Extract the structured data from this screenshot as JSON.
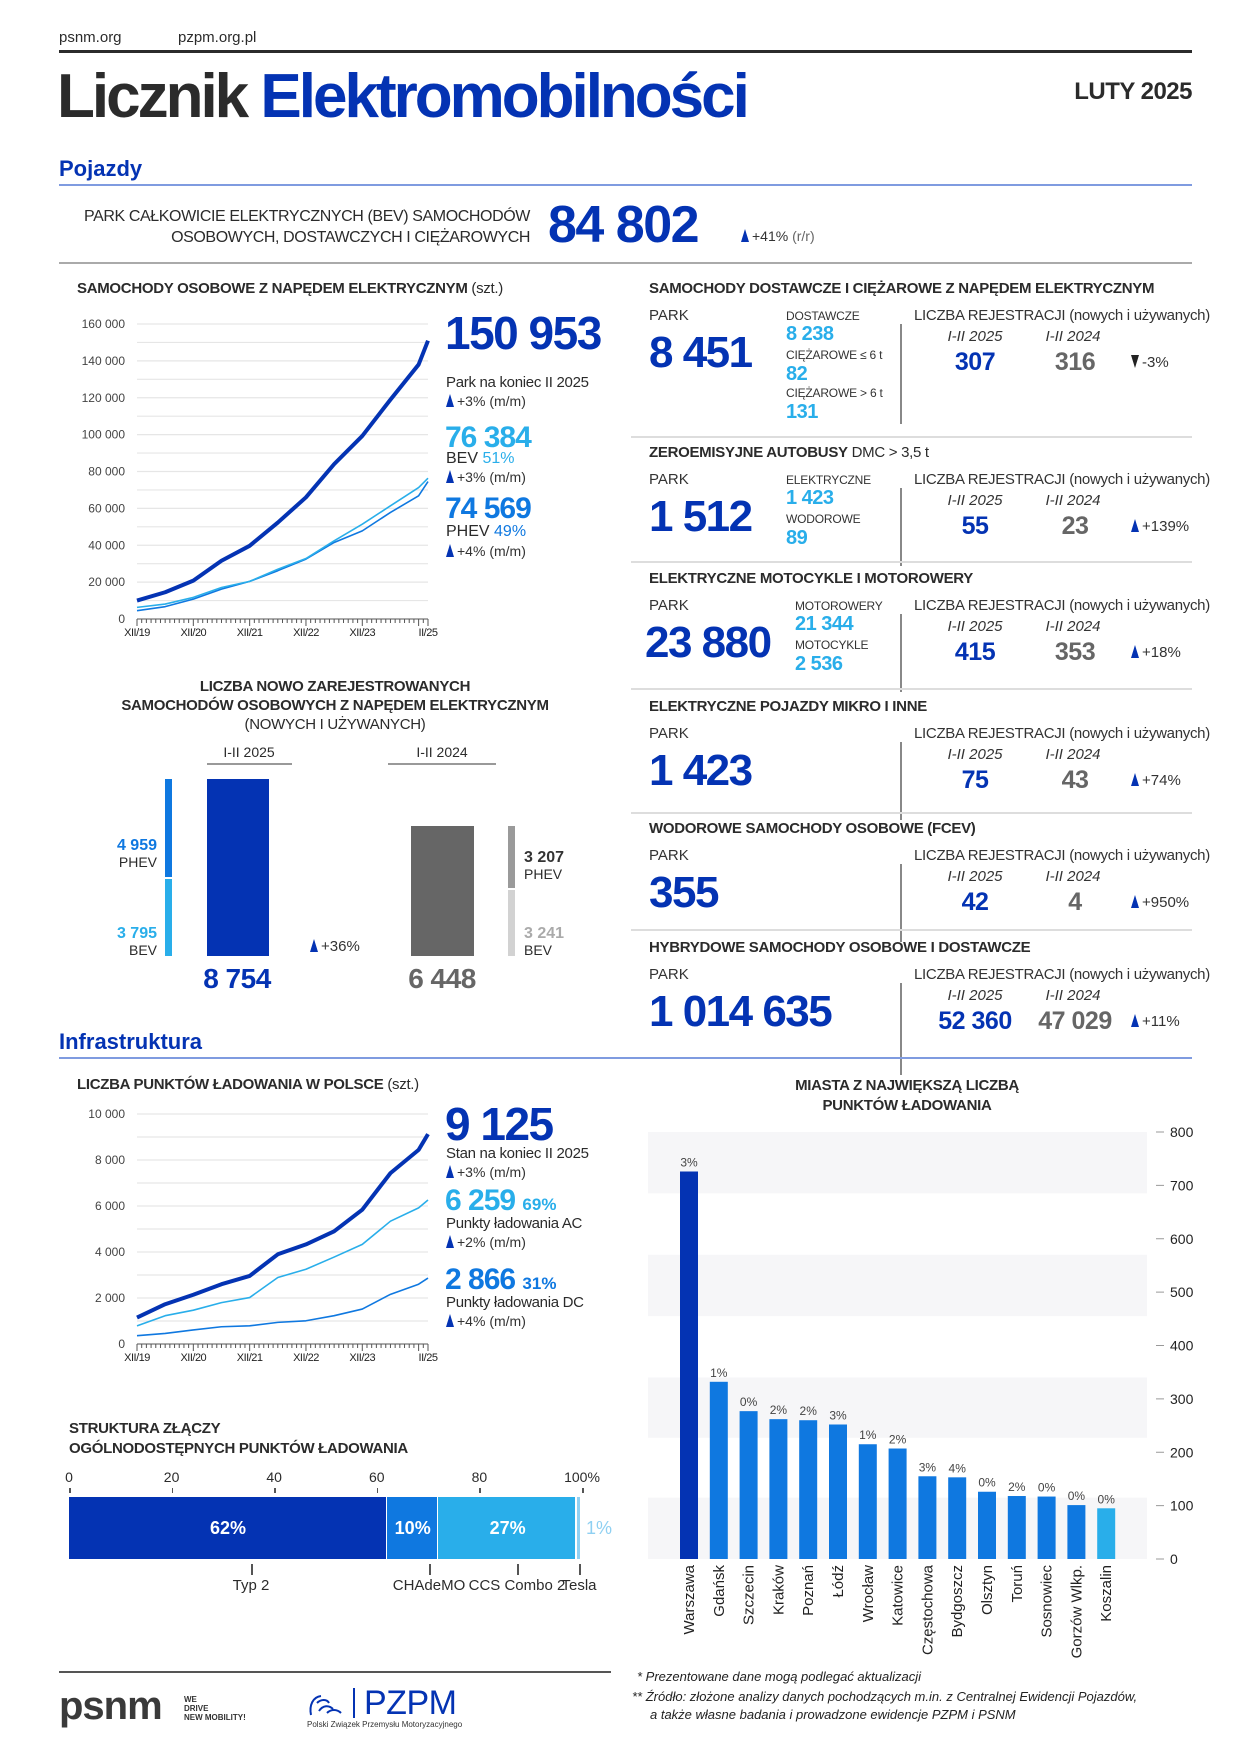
{
  "header": {
    "links": [
      "psnm.org",
      "pzpm.org.pl"
    ],
    "title_dark": "Licznik",
    "title_blue": "Elektromobilności",
    "date": "LUTY 2025"
  },
  "sections": {
    "vehicles": "Pojazdy",
    "infrastructure": "Infrastruktura"
  },
  "bev_fleet": {
    "label_line1": "PARK CAŁKOWICIE ELEKTRYCZNYCH (BEV) SAMOCHODÓW",
    "label_line2": "OSOBOWYCH, DOSTAWCZYCH I CIĘŻAROWYCH",
    "value": "84 802",
    "change": "+41%",
    "change_unit": "(r/r)"
  },
  "colors": {
    "dark_blue": "#0433b3",
    "mid_blue": "#0f78e0",
    "light_blue": "#29aeea",
    "grey": "#666666",
    "light_grey": "#d2d2d2",
    "mid_grey": "#9a9a9a"
  },
  "cars": {
    "title": "SAMOCHODY OSOBOWE Z NAPĘDEM ELEKTRYCZNYM",
    "unit": "(szt.)",
    "total": "150 953",
    "total_label": "Park na koniec II 2025",
    "total_change": "+3%",
    "mm": "(m/m)",
    "bev": "76 384",
    "bev_label": "BEV",
    "bev_share": "51%",
    "bev_change": "+3%",
    "phev": "74 569",
    "phev_label": "PHEV",
    "phev_share": "49%",
    "phev_change": "+4%"
  },
  "registrations": {
    "title_line1": "LICZBA NOWO ZAREJESTROWANYCH",
    "title_line2": "SAMOCHODÓW OSOBOWYCH Z NAPĘDEM ELEKTRYCZNYM",
    "title_line3": "(NOWYCH I UŻYWANYCH)",
    "period_current": "I-II 2025",
    "period_prev": "I-II 2024",
    "current_total": "8 754",
    "prev_total": "6 448",
    "change": "+36%",
    "current_phev": "4 959",
    "current_bev": "3 795",
    "prev_phev": "3 207",
    "prev_bev": "3 241",
    "phev_label": "PHEV",
    "bev_label": "BEV"
  },
  "common": {
    "park": "PARK",
    "reg_label": "LICZBA REJESTRACJI",
    "reg_paren": "(nowych i używanych)",
    "year_current": "I-II 2025",
    "year_prev": "I-II 2024"
  },
  "panels": [
    {
      "title": "SAMOCHODY DOSTAWCZE I CIĘŻAROWE Z NAPĘDEM ELEKTRYCZNYM",
      "title_suffix": "",
      "park": "8 451",
      "sub": [
        {
          "label": "DOSTAWCZE",
          "value": "8 238"
        },
        {
          "label": "CIĘŻAROWE ≤ 6 t",
          "value": "82"
        },
        {
          "label": "CIĘŻAROWE > 6 t",
          "value": "131"
        }
      ],
      "reg_current": "307",
      "reg_prev": "316",
      "change": "-3%",
      "direction": "down"
    },
    {
      "title": "ZEROEMISYJNE AUTOBUSY",
      "title_suffix": " DMC > 3,5 t",
      "park": "1 512",
      "sub": [
        {
          "label": "ELEKTRYCZNE",
          "value": "1 423"
        },
        {
          "label": "WODOROWE",
          "value": "89"
        }
      ],
      "reg_current": "55",
      "reg_prev": "23",
      "change": "+139%",
      "direction": "up"
    },
    {
      "title": "ELEKTRYCZNE MOTOCYKLE I MOTOROWERY",
      "title_suffix": "",
      "park": "23 880",
      "sub": [
        {
          "label": "MOTOROWERY",
          "value": "21 344"
        },
        {
          "label": "MOTOCYKLE",
          "value": "2 536"
        }
      ],
      "reg_current": "415",
      "reg_prev": "353",
      "change": "+18%",
      "direction": "up"
    },
    {
      "title": "ELEKTRYCZNE POJAZDY MIKRO I INNE",
      "title_suffix": "",
      "park": "1 423",
      "sub": [],
      "reg_current": "75",
      "reg_prev": "43",
      "change": "+74%",
      "direction": "up"
    },
    {
      "title": "WODOROWE SAMOCHODY OSOBOWE (FCEV)",
      "title_suffix": "",
      "park": "355",
      "sub": [],
      "reg_current": "42",
      "reg_prev": "4",
      "change": "+950%",
      "direction": "up"
    },
    {
      "title": "HYBRYDOWE SAMOCHODY OSOBOWE I DOSTAWCZE",
      "title_suffix": "",
      "park": "1 014 635",
      "sub": [],
      "reg_current": "52 360",
      "reg_prev": "47 029",
      "change": "+11%",
      "direction": "up"
    }
  ],
  "charging": {
    "title": "LICZBA PUNKTÓW ŁADOWANIA W POLSCE",
    "unit": "(szt.)",
    "total": "9 125",
    "total_label": "Stan na koniec II 2025",
    "total_change": "+3%",
    "mm": "(m/m)",
    "ac": "6 259",
    "ac_share": "69%",
    "ac_label": "Punkty ładowania AC",
    "ac_change": "+2%",
    "dc": "2 866",
    "dc_share": "31%",
    "dc_label": "Punkty ładowania DC",
    "dc_change": "+4%"
  },
  "connectors": {
    "title_line1": "STRUKTURA ZŁĄCZY",
    "title_line2": "OGÓLNODOSTĘPNYCH PUNKTÓW ŁADOWANIA"
  },
  "cities": {
    "title_line1": "MIASTA Z NAJWIĘKSZĄ LICZBĄ",
    "title_line2": "PUNKTÓW ŁADOWANIA"
  },
  "footnotes": [
    "* Prezentowane dane mogą podlegać aktualizacji",
    "** Źródło: złożone analizy danych pochodzących m.in. z Centralnej Ewidencji Pojazdów,",
    "a także własne badania i prowadzone ewidencje PZPM i PSNM"
  ],
  "logos": {
    "psnm": "psnm",
    "psnm_tagline": [
      "WE",
      "DRIVE",
      "NEW MOBILITY!"
    ],
    "pzpm": "PZPM",
    "pzpm_full": "Polski Związek Przemysłu Motoryzacyjnego"
  },
  "chart_data": [
    {
      "type": "line",
      "title": "SAMOCHODY OSOBOWE Z NAPĘDEM ELEKTRYCZNYM (szt.)",
      "x": [
        "XII/19",
        "VI/20",
        "XII/20",
        "VI/21",
        "XII/21",
        "VI/22",
        "XII/22",
        "VI/23",
        "XII/23",
        "VI/24",
        "XII/24",
        "II/25"
      ],
      "x_index": [
        0,
        6,
        12,
        18,
        24,
        30,
        36,
        42,
        48,
        54,
        60,
        62
      ],
      "x_tick_labels": [
        "XII/19",
        "XII/20",
        "XII/21",
        "XII/22",
        "XII/23",
        "II/25"
      ],
      "y_ticks": [
        "0",
        "20 000",
        "40 000",
        "60 000",
        "80 000",
        "100 000",
        "120 000",
        "140 000",
        "160 000"
      ],
      "ylim": [
        0,
        160000
      ],
      "grid": true,
      "series": [
        {
          "name": "Razem",
          "color": "#0433b3",
          "values": [
            10000,
            14500,
            20800,
            31600,
            39700,
            52300,
            66000,
            84000,
            99300,
            119000,
            138000,
            150953
          ]
        },
        {
          "name": "BEV",
          "color": "#29aeea",
          "values": [
            6300,
            8100,
            11700,
            17100,
            20400,
            27000,
            32800,
            42400,
            51400,
            61400,
            71300,
            76384
          ]
        },
        {
          "name": "PHEV",
          "color": "#0f78e0",
          "values": [
            4500,
            6700,
            10800,
            16200,
            20400,
            26200,
            32500,
            41500,
            47800,
            57800,
            66800,
            74569
          ]
        }
      ]
    },
    {
      "type": "bar",
      "title": "LICZBA NOWO ZAREJESTROWANYCH SAMOCHODÓW OSOBOWYCH Z NAPĘDEM ELEKTRYCZNYM (NOWYCH I UŻYWANYCH)",
      "categories": [
        "I-II 2025",
        "I-II 2024"
      ],
      "values": [
        8754,
        6448
      ],
      "series": [
        {
          "name": "BEV",
          "values": [
            3795,
            3241
          ]
        },
        {
          "name": "PHEV",
          "values": [
            4959,
            3207
          ]
        }
      ],
      "change": "+36%"
    },
    {
      "type": "line",
      "title": "LICZBA PUNKTÓW ŁADOWANIA W POLSCE (szt.)",
      "x": [
        "XII/19",
        "VI/20",
        "XII/20",
        "VI/21",
        "XII/21",
        "VI/22",
        "XII/22",
        "VI/23",
        "XII/23",
        "VI/24",
        "XII/24",
        "II/25"
      ],
      "x_index": [
        0,
        6,
        12,
        18,
        24,
        30,
        36,
        42,
        48,
        54,
        60,
        62
      ],
      "x_tick_labels": [
        "XII/19",
        "XII/20",
        "XII/21",
        "XII/22",
        "XII/23",
        "II/25"
      ],
      "y_ticks": [
        "0",
        "2 000",
        "4 000",
        "6 000",
        "8 000",
        "10 000"
      ],
      "ylim": [
        0,
        10000
      ],
      "grid": true,
      "series": [
        {
          "name": "Razem",
          "color": "#0433b3",
          "values": [
            1150,
            1730,
            2140,
            2600,
            2960,
            3900,
            4330,
            4900,
            5840,
            7430,
            8440,
            9125
          ]
        },
        {
          "name": "AC",
          "color": "#29aeea",
          "values": [
            790,
            1230,
            1470,
            1800,
            2020,
            2890,
            3250,
            3780,
            4330,
            5340,
            5920,
            6259
          ]
        },
        {
          "name": "DC",
          "color": "#0f78e0",
          "values": [
            360,
            460,
            610,
            750,
            790,
            940,
            1010,
            1230,
            1520,
            2160,
            2600,
            2866
          ]
        }
      ]
    },
    {
      "type": "bar",
      "orientation": "horizontal-stacked",
      "title": "STRUKTURA ZŁĄCZY OGÓLNODOSTĘPNYCH PUNKTÓW ŁADOWANIA",
      "categories": [
        "Typ 2",
        "CHAdeMO",
        "CCS Combo 2",
        "Tesla"
      ],
      "values": [
        62,
        10,
        27,
        1
      ],
      "labels": [
        "62%",
        "10%",
        "27%",
        "1%"
      ],
      "colors": [
        "#0433b3",
        "#0f78e0",
        "#29aeea",
        "#8fd0f2"
      ],
      "x_ticks": [
        "0",
        "20",
        "40",
        "60",
        "80",
        "100%"
      ],
      "xlim": [
        0,
        100
      ]
    },
    {
      "type": "bar",
      "title": "MIASTA Z NAJWIĘKSZĄ LICZBĄ PUNKTÓW ŁADOWANIA",
      "categories": [
        "Warszawa",
        "Gdańsk",
        "Szczecin",
        "Kraków",
        "Poznań",
        "Łódź",
        "Wrocław",
        "Katowice",
        "Częstochowa",
        "Bydgoszcz",
        "Olsztyn",
        "Toruń",
        "Sosnowiec",
        "Gorzów Wlkp.",
        "Koszalin"
      ],
      "values": [
        726,
        332,
        277,
        262,
        260,
        252,
        215,
        207,
        155,
        153,
        126,
        118,
        117,
        101,
        95
      ],
      "labels": [
        "3%",
        "1%",
        "0%",
        "2%",
        "2%",
        "3%",
        "1%",
        "2%",
        "3%",
        "4%",
        "0%",
        "2%",
        "0%",
        "0%",
        "0%"
      ],
      "y_ticks": [
        "0",
        "100",
        "200",
        "300",
        "400",
        "500",
        "600",
        "700",
        "800"
      ],
      "ylim": [
        0,
        800
      ]
    }
  ]
}
